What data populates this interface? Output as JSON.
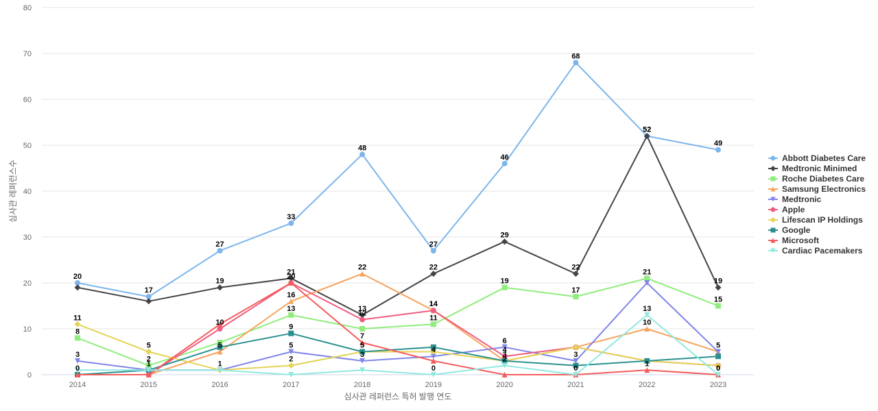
{
  "chart_data": {
    "type": "line",
    "title": "",
    "xlabel": "심사관 레퍼런스 특허 발행 연도",
    "ylabel": "심사관 레퍼런스수",
    "ylim": [
      0,
      80
    ],
    "yticks": [
      0,
      10,
      20,
      30,
      40,
      50,
      60,
      70,
      80
    ],
    "grid": true,
    "legend_position": "right",
    "categories": [
      "2014",
      "2015",
      "2016",
      "2017",
      "2018",
      "2019",
      "2020",
      "2021",
      "2022",
      "2023"
    ],
    "series": [
      {
        "name": "Abbott Diabetes Care",
        "color": "#7cb5ec",
        "marker": "circle",
        "values": [
          20,
          17,
          27,
          33,
          48,
          27,
          46,
          68,
          52,
          49
        ]
      },
      {
        "name": "Medtronic Minimed",
        "color": "#434348",
        "marker": "diamond",
        "values": [
          19,
          16,
          19,
          21,
          13,
          22,
          29,
          22,
          52,
          19
        ]
      },
      {
        "name": "Roche Diabetes Care",
        "color": "#90ed7d",
        "marker": "square",
        "values": [
          8,
          2,
          7,
          13,
          10,
          11,
          19,
          17,
          21,
          15
        ]
      },
      {
        "name": "Samsung Electronics",
        "color": "#f7a35c",
        "marker": "triangle",
        "values": [
          0,
          0,
          5,
          16,
          22,
          14,
          3,
          6,
          10,
          5
        ]
      },
      {
        "name": "Medtronic",
        "color": "#8085e9",
        "marker": "triangle-down",
        "values": [
          3,
          1,
          1,
          5,
          3,
          4,
          6,
          3,
          20,
          5
        ]
      },
      {
        "name": "Apple",
        "color": "#f15c80",
        "marker": "circle",
        "values": [
          0,
          0,
          10,
          20,
          12,
          14,
          4,
          6,
          3,
          2
        ]
      },
      {
        "name": "Lifescan IP Holdings",
        "color": "#e4d354",
        "marker": "diamond",
        "values": [
          11,
          5,
          1,
          2,
          5,
          5,
          3,
          6,
          3,
          2
        ]
      },
      {
        "name": "Google",
        "color": "#2b908f",
        "marker": "square",
        "values": [
          0,
          1,
          6,
          9,
          5,
          6,
          3,
          2,
          3,
          4
        ]
      },
      {
        "name": "Microsoft",
        "color": "#f45b5b",
        "marker": "triangle",
        "values": [
          0,
          0,
          11,
          20,
          7,
          3,
          0,
          0,
          1,
          0
        ]
      },
      {
        "name": "Cardiac Pacemakers",
        "color": "#91e8e1",
        "marker": "triangle-down",
        "values": [
          1,
          1,
          1,
          0,
          1,
          0,
          2,
          0,
          13,
          0
        ]
      }
    ],
    "data_labels": [
      {
        "series": 0,
        "points": [
          0,
          1,
          2,
          3,
          4,
          5,
          6,
          7,
          8,
          9
        ]
      },
      {
        "series": 1,
        "points": [
          2,
          3,
          4,
          5,
          6,
          7,
          8,
          9
        ]
      },
      {
        "series": 2,
        "points": [
          0,
          1,
          3,
          5,
          6,
          7,
          8,
          9
        ]
      },
      {
        "series": 3,
        "points": [
          2,
          3,
          4,
          5,
          6,
          8,
          9
        ]
      },
      {
        "series": 4,
        "points": [
          0,
          3,
          4,
          5,
          6,
          7
        ]
      },
      {
        "series": 5,
        "points": [
          2,
          3,
          4,
          5,
          6
        ]
      },
      {
        "series": 6,
        "points": [
          0,
          1,
          2,
          3
        ]
      },
      {
        "series": 7,
        "points": [
          0,
          3,
          4
        ]
      },
      {
        "series": 8,
        "points": [
          4,
          7,
          8,
          9
        ]
      },
      {
        "series": 9,
        "points": [
          1,
          5,
          6,
          8,
          9
        ]
      }
    ]
  }
}
